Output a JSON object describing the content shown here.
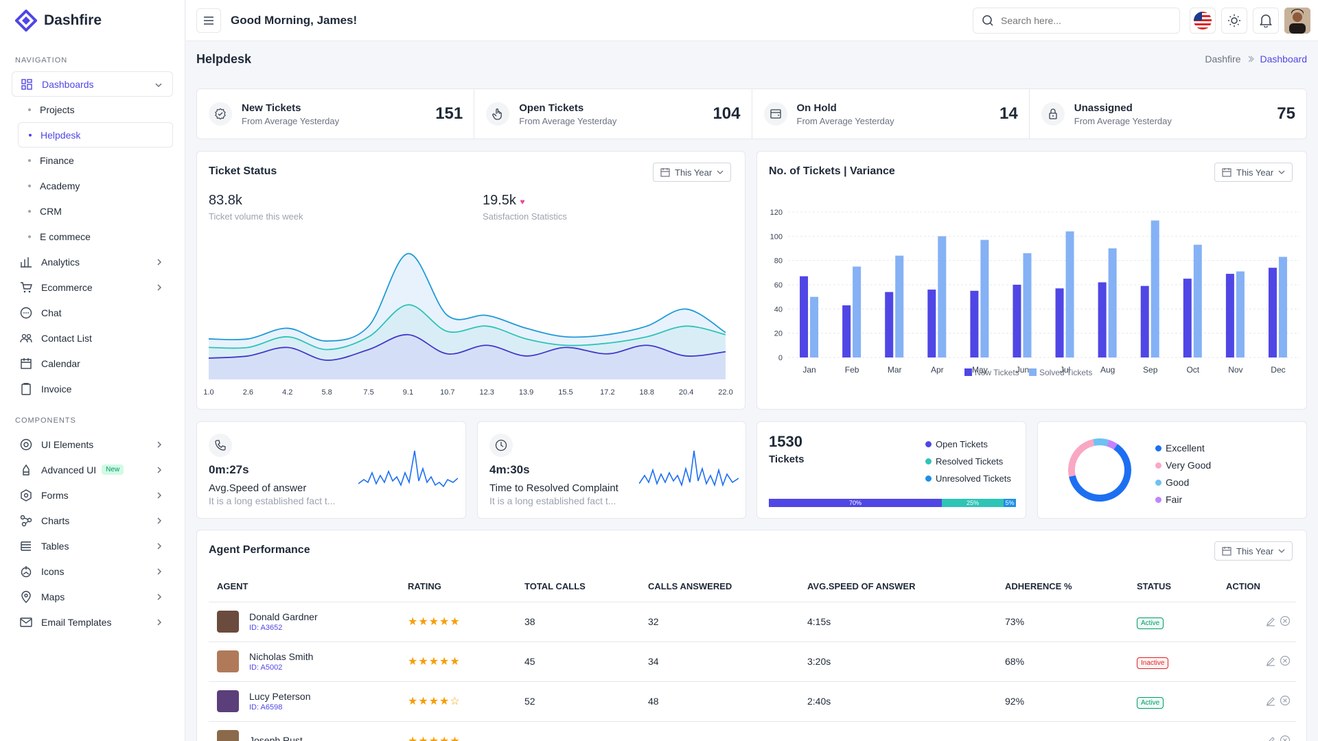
{
  "brand": {
    "name": "Dashfire"
  },
  "header": {
    "greeting": "Good Morning, James!",
    "search_placeholder": "Search here..."
  },
  "sidebar": {
    "nav_heading": "NAVIGATION",
    "dashboards": {
      "label": "Dashboards",
      "items": [
        "Projects",
        "Helpdesk",
        "Finance",
        "Academy",
        "CRM",
        "E commece"
      ]
    },
    "nav_items": [
      {
        "label": "Analytics",
        "icon": "analytics-icon",
        "chevron": true
      },
      {
        "label": "Ecommerce",
        "icon": "cart-icon",
        "chevron": true
      },
      {
        "label": "Chat",
        "icon": "chat-icon",
        "chevron": false
      },
      {
        "label": "Contact List",
        "icon": "contacts-icon",
        "chevron": false
      },
      {
        "label": "Calendar",
        "icon": "calendar-icon",
        "chevron": false
      },
      {
        "label": "Invoice",
        "icon": "invoice-icon",
        "chevron": false
      }
    ],
    "components_heading": "COMPONENTS",
    "component_items": [
      {
        "label": "UI Elements",
        "icon": "ui-elements-icon"
      },
      {
        "label": "Advanced UI",
        "icon": "advanced-ui-icon",
        "badge": "New"
      },
      {
        "label": "Forms",
        "icon": "forms-icon"
      },
      {
        "label": "Charts",
        "icon": "charts-icon"
      },
      {
        "label": "Tables",
        "icon": "tables-icon"
      },
      {
        "label": "Icons",
        "icon": "icons-icon"
      },
      {
        "label": "Maps",
        "icon": "maps-icon"
      },
      {
        "label": "Email Templates",
        "icon": "email-icon"
      }
    ]
  },
  "page": {
    "title": "Helpdesk",
    "breadcrumb": [
      "Dashfire",
      "Dashboard"
    ]
  },
  "stats": [
    {
      "title": "New Tickets",
      "sub": "From Average Yesterday",
      "value": "151",
      "icon": "ticket-check-icon"
    },
    {
      "title": "Open Tickets",
      "sub": "From Average Yesterday",
      "value": "104",
      "icon": "hand-pointer-icon"
    },
    {
      "title": "On Hold",
      "sub": "From Average Yesterday",
      "value": "14",
      "icon": "window-icon"
    },
    {
      "title": "Unassigned",
      "sub": "From Average Yesterday",
      "value": "75",
      "icon": "lock-icon"
    }
  ],
  "ticket_status": {
    "title": "Ticket Status",
    "filter": "This Year",
    "volume_value": "83.8k",
    "volume_label": "Ticket volume this week",
    "satisfaction_value": "19.5k",
    "satisfaction_label": "Satisfaction Statistics"
  },
  "variance": {
    "title": "No. of Tickets | Variance",
    "filter": "This Year"
  },
  "speed_card": {
    "value": "0m:27s",
    "title": "Avg.Speed of answer",
    "desc": "It is a long established fact t..."
  },
  "resolve_card": {
    "value": "4m:30s",
    "title": "Time to Resolved Complaint",
    "desc": "It is a long established fact t..."
  },
  "tickets_card": {
    "value": "1530",
    "label": "Tickets",
    "legend": [
      "Open Tickets",
      "Resolved Tickets",
      "Unresolved Tickets"
    ],
    "segments": [
      {
        "label": "70%",
        "value": 70,
        "color": "#4f46e5"
      },
      {
        "label": "25%",
        "value": 25,
        "color": "#2ec4b6"
      },
      {
        "label": "5%",
        "value": 5,
        "color": "#1d8fe8"
      }
    ]
  },
  "rating_card": {
    "legend": [
      {
        "label": "Excellent",
        "color": "#1d6ff2"
      },
      {
        "label": "Very Good",
        "color": "#f9a8c4"
      },
      {
        "label": "Good",
        "color": "#6ec1f2"
      },
      {
        "label": "Fair",
        "color": "#c084fc"
      }
    ],
    "slices": [
      {
        "label": "Excellent",
        "value": 62
      },
      {
        "label": "Very Good",
        "value": 25
      },
      {
        "label": "Good",
        "value": 8
      },
      {
        "label": "Fair",
        "value": 5
      }
    ]
  },
  "agent_performance": {
    "title": "Agent Performance",
    "filter": "This Year",
    "columns": [
      "AGENT",
      "RATING",
      "TOTAL CALLS",
      "CALLS ANSWERED",
      "AVG.SPEED OF ANSWER",
      "ADHERENCE %",
      "STATUS",
      "ACTION"
    ],
    "rows": [
      {
        "name": "Donald Gardner",
        "id": "ID: A3652",
        "rating": 5,
        "total": "38",
        "answered": "32",
        "speed": "4:15s",
        "adherence": "73%",
        "status": "Active"
      },
      {
        "name": "Nicholas Smith",
        "id": "ID: A5002",
        "rating": 5,
        "total": "45",
        "answered": "34",
        "speed": "3:20s",
        "adherence": "68%",
        "status": "Inactive"
      },
      {
        "name": "Lucy Peterson",
        "id": "ID: A6598",
        "rating": 4,
        "total": "52",
        "answered": "48",
        "speed": "2:40s",
        "adherence": "92%",
        "status": "Active"
      },
      {
        "name": "Joseph Rust",
        "id": "",
        "rating": 5,
        "total": "",
        "answered": "",
        "speed": "",
        "adherence": "",
        "status": ""
      }
    ]
  },
  "chart_data": [
    {
      "type": "area",
      "x": [
        1.0,
        2.6,
        4.2,
        5.8,
        7.5,
        9.1,
        10.7,
        12.3,
        13.9,
        15.5,
        17.2,
        18.8,
        20.4,
        22.0
      ],
      "xticks": [
        "1.0",
        "2.6",
        "4.2",
        "5.8",
        "7.5",
        "9.1",
        "10.7",
        "12.3",
        "13.9",
        "15.5",
        "17.2",
        "18.8",
        "20.4",
        "22.0"
      ],
      "series": [
        {
          "values": [
            38,
            38,
            48,
            36,
            50,
            118,
            60,
            60,
            48,
            40,
            42,
            50,
            66,
            44
          ],
          "color": "#1f9ad6"
        },
        {
          "values": [
            30,
            30,
            40,
            28,
            40,
            70,
            45,
            50,
            38,
            32,
            34,
            40,
            50,
            42
          ],
          "color": "#2ec4b6"
        },
        {
          "values": [
            20,
            22,
            30,
            18,
            28,
            42,
            24,
            32,
            22,
            30,
            24,
            32,
            22,
            26
          ],
          "color": "#4338ca"
        }
      ]
    },
    {
      "type": "bar",
      "categories": [
        "Jan",
        "Feb",
        "Mar",
        "Apr",
        "May",
        "Jun",
        "Jul",
        "Aug",
        "Sep",
        "Oct",
        "Nov",
        "Dec"
      ],
      "series": [
        {
          "name": "New Tickets",
          "color": "#4f46e5",
          "values": [
            67,
            43,
            54,
            56,
            55,
            60,
            57,
            62,
            59,
            65,
            69,
            74
          ]
        },
        {
          "name": "Solved Tickets",
          "color": "#85b1f5",
          "values": [
            50,
            75,
            84,
            100,
            97,
            86,
            104,
            90,
            113,
            93,
            71,
            83
          ]
        }
      ],
      "ylim": [
        0,
        120
      ],
      "yticks": [
        0,
        20,
        40,
        60,
        80,
        100,
        120
      ]
    }
  ]
}
